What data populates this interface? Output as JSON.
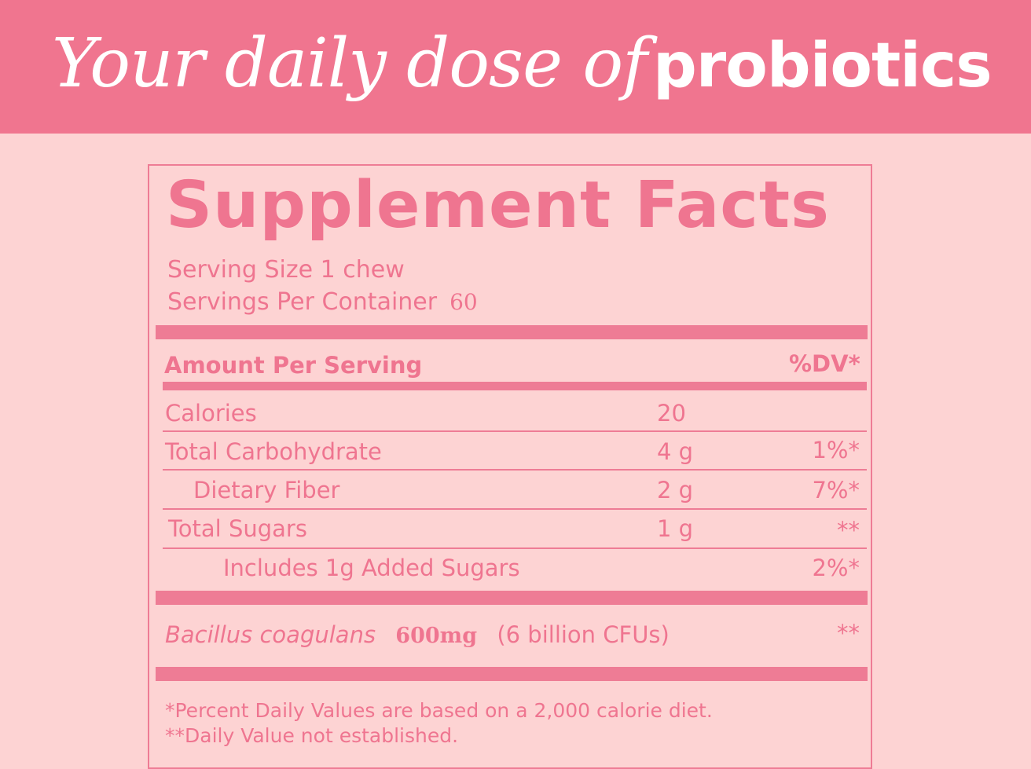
{
  "banner": {
    "title_italic": "Your daily dose of",
    "title_bold": "probiotics"
  },
  "facts": {
    "title": "Supplement Facts",
    "serving_size": "Serving Size 1 chew",
    "servings_per_container_label": "Servings Per Container",
    "servings_per_container_value": "60",
    "amount_header": "Amount Per Serving",
    "dv_header": "%DV*",
    "rows": [
      {
        "name": "Calories",
        "amount": "20",
        "dv": ""
      },
      {
        "name": "Total Carbohydrate",
        "amount": "4 g",
        "dv": "1%*"
      },
      {
        "name": "Dietary Fiber",
        "amount": "2 g",
        "dv": "7%*"
      },
      {
        "name": "Total Sugars",
        "amount": "1 g",
        "dv": "**"
      },
      {
        "name": "Includes 1g Added Sugars",
        "amount": "",
        "dv": "2%*"
      }
    ],
    "bacillus": {
      "name": "Bacillus coagulans",
      "amount": "600mg",
      "cfu": "(6 billion CFUs)",
      "dv": "**"
    },
    "footnote_1": "*Percent Daily Values are based on a 2,000 calorie diet.",
    "footnote_2": "**Daily Value not established."
  },
  "colors": {
    "banner": "#f0758f",
    "background": "#fdd3d3",
    "accent": "#ef7590"
  }
}
